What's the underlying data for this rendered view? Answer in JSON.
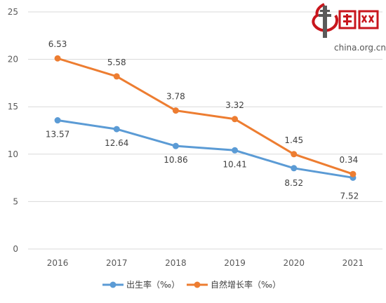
{
  "watermark": {
    "logo_text": "中国网",
    "domain": "china.org.cn"
  },
  "chart_data": {
    "type": "line",
    "x": [
      "2016",
      "2017",
      "2018",
      "2019",
      "2020",
      "2021"
    ],
    "series": [
      {
        "name": "出生率（‰）",
        "color": "#5b9bd5",
        "values": [
          13.57,
          12.64,
          10.86,
          10.41,
          8.52,
          7.52
        ],
        "labels": [
          "13.57",
          "12.64",
          "10.86",
          "10.41",
          "8.52",
          "7.52"
        ]
      },
      {
        "name": "自然增长率（‰）",
        "color": "#ed7d31",
        "point_values": [
          20.1,
          18.2,
          14.6,
          13.7,
          10.0,
          7.9
        ],
        "labels": [
          "6.53",
          "5.58",
          "3.78",
          "3.32",
          "1.45",
          "0.34"
        ]
      }
    ],
    "ylim": [
      0,
      25
    ],
    "yticks": [
      "0",
      "5",
      "10",
      "15",
      "20",
      "25"
    ],
    "grid": true,
    "legend_position": "bottom"
  }
}
